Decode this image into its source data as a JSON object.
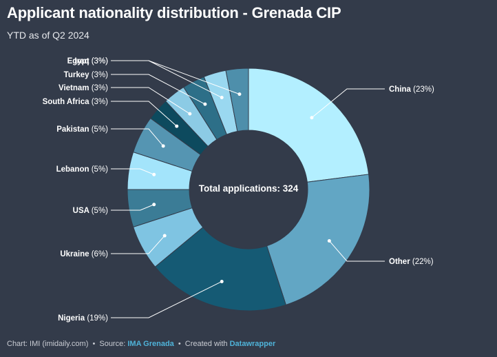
{
  "header": {
    "title": "Applicant nationality distribution - Grenada CIP",
    "subtitle": "YTD as of Q2 2024"
  },
  "chart_data": {
    "type": "pie",
    "donut": true,
    "center_label": "Total applications: 324",
    "slices": [
      {
        "name": "China",
        "value": 23,
        "label": "(23%)",
        "color": "#b3efff"
      },
      {
        "name": "Other",
        "value": 22,
        "label": "(22%)",
        "color": "#62a6c4"
      },
      {
        "name": "Nigeria",
        "value": 19,
        "label": "(19%)",
        "color": "#155a74"
      },
      {
        "name": "Ukraine",
        "value": 6,
        "label": "(6%)",
        "color": "#7fc4e2"
      },
      {
        "name": "USA",
        "value": 5,
        "label": "(5%)",
        "color": "#3b7c96"
      },
      {
        "name": "Lebanon",
        "value": 5,
        "label": "(5%)",
        "color": "#a3e4fb"
      },
      {
        "name": "Pakistan",
        "value": 5,
        "label": "(5%)",
        "color": "#5595b2"
      },
      {
        "name": "South Africa",
        "value": 3,
        "label": "(3%)",
        "color": "#0d4a5e"
      },
      {
        "name": "Vietnam",
        "value": 3,
        "label": "(3%)",
        "color": "#8ccbe5"
      },
      {
        "name": "Turkey",
        "value": 3,
        "label": "(3%)",
        "color": "#2d6f88"
      },
      {
        "name": "Iraq",
        "value": 3,
        "label": "(3%)",
        "color": "#9ad8f0"
      },
      {
        "name": "Egypt",
        "value": 3,
        "label": "(3%)",
        "color": "#4e8fab"
      }
    ]
  },
  "footer": {
    "chart_credit": "Chart: IMI (imidaily.com)",
    "separator": "•",
    "source_label": "Source:",
    "source_name": "IMA Grenada",
    "created_label": "Created with",
    "tool_name": "Datawrapper"
  }
}
